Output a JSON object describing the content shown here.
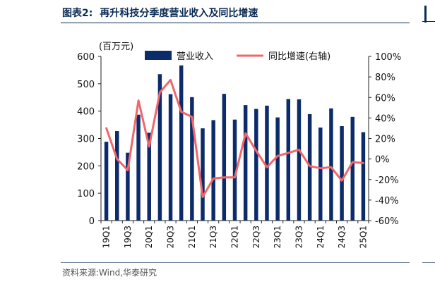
{
  "header": {
    "title_num": "图表2:",
    "title_text": "再升科技分季度营业收入及同比增速"
  },
  "source": "资料来源:Wind,华泰研究",
  "colors": {
    "bar": "#0b2b6b",
    "line": "#f0666b",
    "title": "#0b2b54"
  },
  "chart_data": {
    "type": "bar",
    "title": "",
    "unit_label": "(百万元)",
    "categories": [
      "19Q1",
      "19Q2",
      "19Q3",
      "19Q4",
      "20Q1",
      "20Q2",
      "20Q3",
      "20Q4",
      "21Q1",
      "21Q2",
      "21Q3",
      "21Q4",
      "22Q1",
      "22Q2",
      "22Q3",
      "22Q4",
      "23Q1",
      "23Q2",
      "23Q3",
      "23Q4",
      "24Q1",
      "24Q2",
      "24Q3",
      "24Q4",
      "25Q1"
    ],
    "xtick_labels": [
      "19Q1",
      "19Q3",
      "20Q1",
      "20Q3",
      "21Q1",
      "21Q3",
      "22Q1",
      "22Q3",
      "23Q1",
      "23Q3",
      "24Q1",
      "24Q3",
      "25Q1"
    ],
    "series": [
      {
        "name": "营业收入",
        "type": "bar",
        "axis": "left",
        "values": [
          288,
          327,
          248,
          387,
          321,
          535,
          462,
          567,
          451,
          337,
          367,
          463,
          369,
          422,
          408,
          420,
          377,
          444,
          443,
          389,
          340,
          410,
          345,
          379,
          323
        ]
      },
      {
        "name": "同比增速(右轴)",
        "type": "line",
        "axis": "right",
        "values": [
          30,
          0,
          -11,
          57,
          12,
          65,
          77,
          46,
          41,
          -37,
          -19,
          -18,
          -18,
          25,
          8,
          -8,
          3,
          6,
          9,
          -7,
          -9,
          -8,
          -21,
          -3,
          -4
        ]
      }
    ],
    "ylim_left": [
      0,
      600
    ],
    "yticks_left": [
      "0",
      "100",
      "200",
      "300",
      "400",
      "500",
      "600"
    ],
    "ylim_right": [
      -60,
      100
    ],
    "yticks_right": [
      "-60%",
      "-40%",
      "-20%",
      "0%",
      "20%",
      "40%",
      "60%",
      "80%",
      "100%"
    ],
    "legend_position": "top",
    "grid": false
  }
}
